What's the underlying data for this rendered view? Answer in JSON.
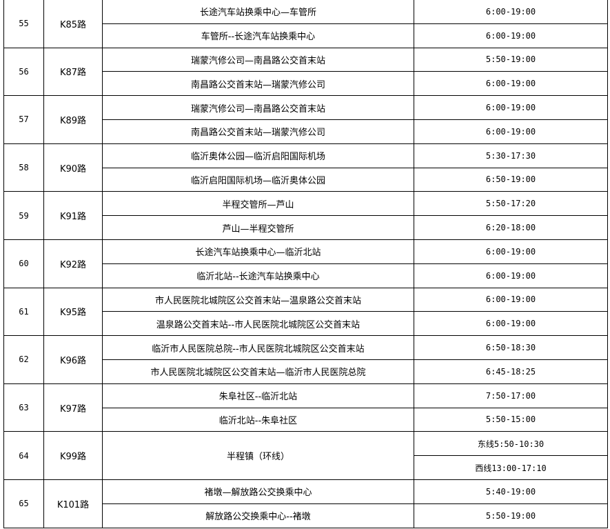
{
  "groups": [
    {
      "no": "55",
      "line": "K85路",
      "rows": [
        {
          "route": "长途汽车站换乘中心—车管所",
          "time": "6:00-19:00"
        },
        {
          "route": "车管所--长途汽车站换乘中心",
          "time": "6:00-19:00"
        }
      ]
    },
    {
      "no": "56",
      "line": "K87路",
      "rows": [
        {
          "route": "瑞蒙汽修公司—南昌路公交首末站",
          "time": "5:50-19:00"
        },
        {
          "route": "南昌路公交首末站—瑞蒙汽修公司",
          "time": "6:00-19:00"
        }
      ]
    },
    {
      "no": "57",
      "line": "K89路",
      "rows": [
        {
          "route": "瑞蒙汽修公司—南昌路公交首末站",
          "time": "6:00-19:00"
        },
        {
          "route": "南昌路公交首末站—瑞蒙汽修公司",
          "time": "6:00-19:00"
        }
      ]
    },
    {
      "no": "58",
      "line": "K90路",
      "rows": [
        {
          "route": "临沂奥体公园—临沂启阳国际机场",
          "time": "5:30-17:30"
        },
        {
          "route": "临沂启阳国际机场—临沂奥体公园",
          "time": "6:50-19:00"
        }
      ]
    },
    {
      "no": "59",
      "line": "K91路",
      "rows": [
        {
          "route": "半程交管所—芦山",
          "time": "5:50-17:20"
        },
        {
          "route": "芦山—半程交管所",
          "time": "6:20-18:00"
        }
      ]
    },
    {
      "no": "60",
      "line": "K92路",
      "rows": [
        {
          "route": "长途汽车站换乘中心—临沂北站",
          "time": "6:00-19:00"
        },
        {
          "route": "临沂北站--长途汽车站换乘中心",
          "time": "6:00-19:00"
        }
      ]
    },
    {
      "no": "61",
      "line": "K95路",
      "rows": [
        {
          "route": "市人民医院北城院区公交首末站—温泉路公交首末站",
          "time": "6:00-19:00"
        },
        {
          "route": "温泉路公交首末站--市人民医院北城院区公交首末站",
          "time": "6:00-19:00"
        }
      ]
    },
    {
      "no": "62",
      "line": "K96路",
      "rows": [
        {
          "route": "临沂市人民医院总院--市人民医院北城院区公交首末站",
          "time": "6:50-18:30"
        },
        {
          "route": "市人民医院北城院区公交首末站—临沂市人民医院总院",
          "time": "6:45-18:25"
        }
      ]
    },
    {
      "no": "63",
      "line": "K97路",
      "rows": [
        {
          "route": "朱阜社区--临沂北站",
          "time": "7:50-17:00"
        },
        {
          "route": "临沂北站--朱阜社区",
          "time": "5:50-15:00"
        }
      ]
    },
    {
      "no": "64",
      "line": "K99路",
      "rows": [
        {
          "route": "半程镇（环线）",
          "time": "东线5:50-10:30"
        },
        {
          "route": null,
          "time": "西线13:00-17:10"
        }
      ]
    },
    {
      "no": "65",
      "line": "K101路",
      "rows": [
        {
          "route": "褚墩—解放路公交换乘中心",
          "time": "5:40-19:00"
        },
        {
          "route": "解放路公交换乘中心--褚墩",
          "time": "5:50-19:00"
        }
      ]
    }
  ]
}
